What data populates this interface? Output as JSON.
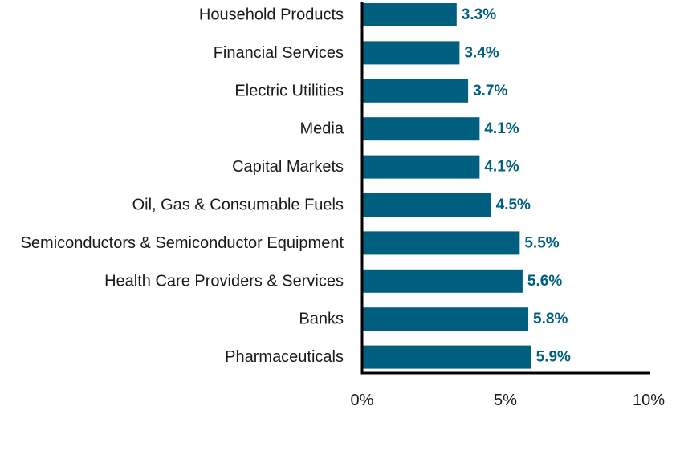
{
  "colors": {
    "bar": "#005f7f",
    "value_label": "#005f7f",
    "axis": "#000000",
    "text": "#1a1a1a"
  },
  "chart_data": {
    "type": "bar",
    "orientation": "horizontal",
    "categories": [
      "Household Products",
      "Financial Services",
      "Electric Utilities",
      "Media",
      "Capital Markets",
      "Oil, Gas & Consumable Fuels",
      "Semiconductors & Semiconductor Equipment",
      "Health Care Providers & Services",
      "Banks",
      "Pharmaceuticals"
    ],
    "values": [
      3.3,
      3.4,
      3.7,
      4.1,
      4.1,
      4.5,
      5.5,
      5.6,
      5.8,
      5.9
    ],
    "value_labels": [
      "3.3%",
      "3.4%",
      "3.7%",
      "4.1%",
      "4.1%",
      "4.5%",
      "5.5%",
      "5.6%",
      "5.8%",
      "5.9%"
    ],
    "xlim": [
      0,
      10
    ],
    "x_ticks": [
      0,
      5,
      10
    ],
    "x_tick_labels": [
      "0%",
      "5%",
      "10%"
    ],
    "title": "",
    "xlabel": "",
    "ylabel": "",
    "grid": false,
    "legend": "none"
  }
}
